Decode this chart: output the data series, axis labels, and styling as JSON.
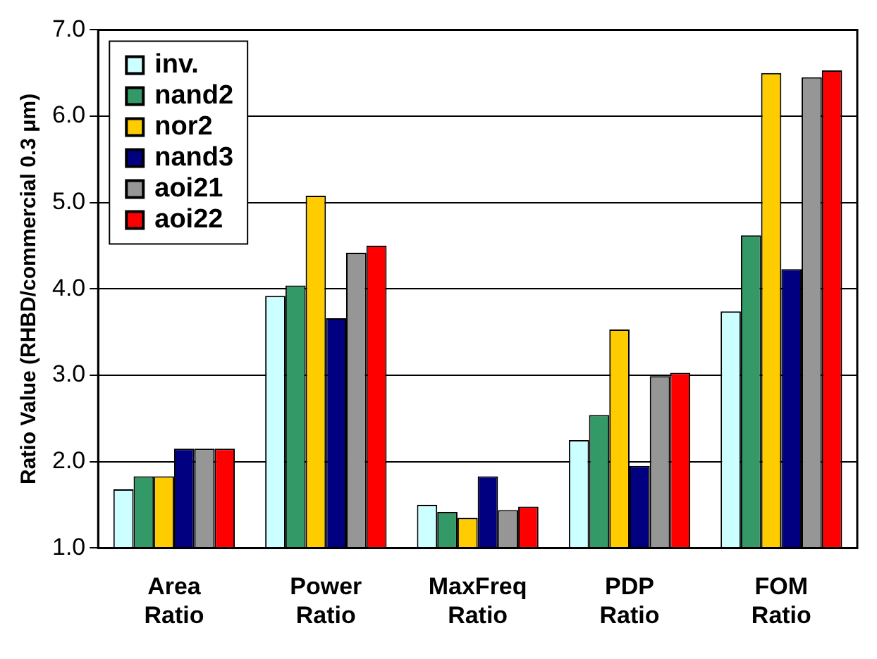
{
  "chart_data": {
    "type": "bar",
    "ylabel": "Ratio Value (RHBD/commercial 0.3 μm)",
    "categories": [
      "Area Ratio",
      "Power Ratio",
      "MaxFreq Ratio",
      "PDP Ratio",
      "FOM Ratio"
    ],
    "series": [
      {
        "name": "inv.",
        "color": "#ccffff",
        "values": [
          1.68,
          3.92,
          1.5,
          2.25,
          3.74
        ]
      },
      {
        "name": "nand2",
        "color": "#339966",
        "values": [
          1.83,
          4.04,
          1.42,
          2.54,
          4.62
        ]
      },
      {
        "name": "nor2",
        "color": "#ffcc00",
        "values": [
          1.83,
          5.08,
          1.35,
          3.53,
          6.5
        ]
      },
      {
        "name": "nand3",
        "color": "#000080",
        "values": [
          2.15,
          3.66,
          1.83,
          1.95,
          4.23
        ]
      },
      {
        "name": "aoi21",
        "color": "#969696",
        "values": [
          2.15,
          4.42,
          1.44,
          2.99,
          6.45
        ]
      },
      {
        "name": "aoi22",
        "color": "#ff0000",
        "values": [
          2.15,
          4.5,
          1.48,
          3.03,
          6.53
        ]
      }
    ],
    "ylim": [
      1.0,
      7.0
    ],
    "yticks": [
      {
        "value": 1,
        "label": "1.0"
      },
      {
        "value": 2,
        "label": "2.0"
      },
      {
        "value": 3,
        "label": "3.0"
      },
      {
        "value": 4,
        "label": "4.0"
      },
      {
        "value": 5,
        "label": "5.0"
      },
      {
        "value": 6,
        "label": "6.0"
      },
      {
        "value": 7,
        "label": "7.0"
      }
    ],
    "grid": "y",
    "legend": "top left"
  }
}
